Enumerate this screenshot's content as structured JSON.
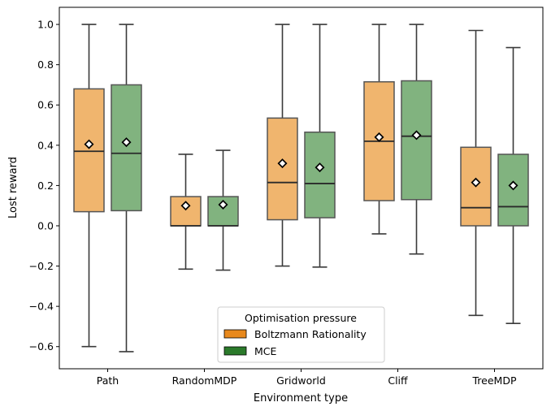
{
  "chart_data": {
    "type": "box",
    "xlabel": "Environment type",
    "ylabel": "Lost reward",
    "ylim": [
      -0.71,
      1.085
    ],
    "yticks": [
      -0.6,
      -0.4,
      -0.2,
      0.0,
      0.2,
      0.4,
      0.6,
      0.8,
      1.0
    ],
    "ytick_labels": [
      "−0.6",
      "−0.4",
      "−0.2",
      "0.0",
      "0.2",
      "0.4",
      "0.6",
      "0.8",
      "1.0"
    ],
    "categories": [
      "Path",
      "RandomMDP",
      "Gridworld",
      "Cliff",
      "TreeMDP"
    ],
    "legend": {
      "title": "Optimisation pressure",
      "placement": "lower-center"
    },
    "series": [
      {
        "name": "Boltzmann Rationality",
        "color": "#e8891d",
        "box_fill": "#f0b56e",
        "stats": [
          {
            "min": -0.6,
            "q1": 0.07,
            "median": 0.37,
            "q3": 0.68,
            "max": 1.0,
            "mean": 0.405
          },
          {
            "min": -0.215,
            "q1": 0.0,
            "median": 0.0,
            "q3": 0.145,
            "max": 0.355,
            "mean": 0.1
          },
          {
            "min": -0.2,
            "q1": 0.03,
            "median": 0.215,
            "q3": 0.535,
            "max": 1.0,
            "mean": 0.31
          },
          {
            "min": -0.04,
            "q1": 0.125,
            "median": 0.42,
            "q3": 0.715,
            "max": 1.0,
            "mean": 0.44
          },
          {
            "min": -0.445,
            "q1": 0.0,
            "median": 0.09,
            "q3": 0.39,
            "max": 0.97,
            "mean": 0.215
          }
        ]
      },
      {
        "name": "MCE",
        "color": "#2b7a2b",
        "box_fill": "#81b37f",
        "stats": [
          {
            "min": -0.625,
            "q1": 0.075,
            "median": 0.36,
            "q3": 0.7,
            "max": 1.0,
            "mean": 0.415
          },
          {
            "min": -0.22,
            "q1": 0.0,
            "median": 0.0,
            "q3": 0.145,
            "max": 0.375,
            "mean": 0.105
          },
          {
            "min": -0.205,
            "q1": 0.04,
            "median": 0.21,
            "q3": 0.465,
            "max": 1.0,
            "mean": 0.29
          },
          {
            "min": -0.14,
            "q1": 0.13,
            "median": 0.445,
            "q3": 0.72,
            "max": 1.0,
            "mean": 0.45
          },
          {
            "min": -0.485,
            "q1": 0.0,
            "median": 0.095,
            "q3": 0.355,
            "max": 0.885,
            "mean": 0.2
          }
        ]
      }
    ]
  }
}
